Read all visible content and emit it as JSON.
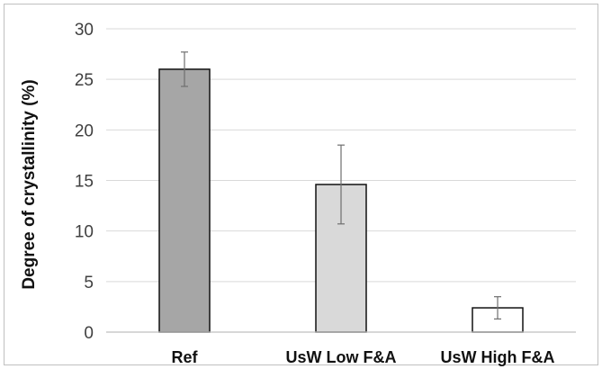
{
  "chart_data": {
    "type": "bar",
    "title": "",
    "xlabel": "",
    "ylabel": "Degree of crystallinity (%)",
    "categories": [
      "Ref",
      "UsW Low F&A",
      "UsW High F&A"
    ],
    "values": [
      26.0,
      14.6,
      2.4
    ],
    "error": [
      1.7,
      3.9,
      1.1
    ],
    "colors": [
      "#a6a6a6",
      "#d9d9d9",
      "#ffffff"
    ],
    "ylim": [
      0,
      30
    ],
    "yticks": [
      0,
      5,
      10,
      15,
      20,
      25,
      30
    ],
    "grid": true,
    "legend": "none"
  }
}
